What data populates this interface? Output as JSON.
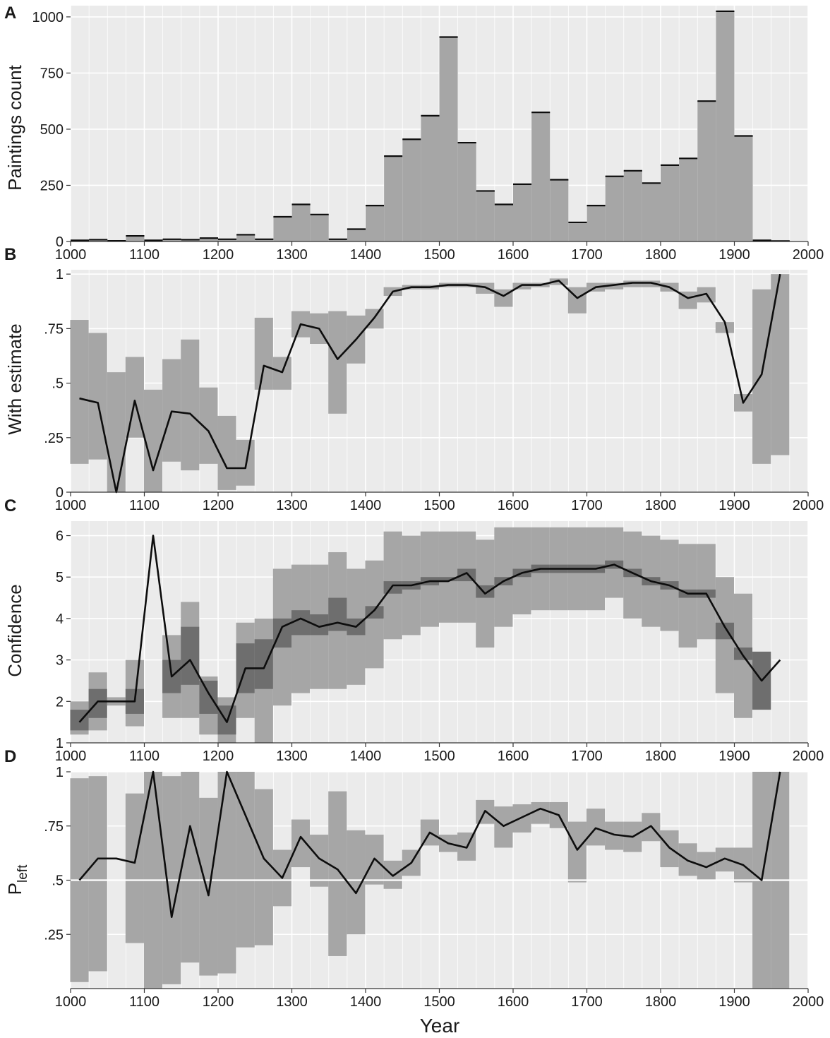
{
  "chart_data": [
    {
      "panel": "A",
      "type": "bar",
      "ylabel": "Paintings count",
      "xlim": [
        1000,
        2000
      ],
      "ylim": [
        0,
        1050
      ],
      "x_ticks": [
        "1000",
        "1100",
        "1200",
        "1300",
        "1400",
        "1500",
        "1600",
        "1700",
        "1800",
        "1900",
        "2000"
      ],
      "y_ticks": [
        {
          "value": 0,
          "label": "0"
        },
        {
          "value": 250,
          "label": "250"
        },
        {
          "value": 500,
          "label": "500"
        },
        {
          "value": 750,
          "label": "750"
        },
        {
          "value": 1000,
          "label": "1000"
        }
      ],
      "bin_width": 25,
      "bin_starts": [
        1000,
        1025,
        1050,
        1075,
        1100,
        1125,
        1150,
        1175,
        1200,
        1225,
        1250,
        1275,
        1300,
        1325,
        1350,
        1375,
        1400,
        1425,
        1450,
        1475,
        1500,
        1525,
        1550,
        1575,
        1600,
        1625,
        1650,
        1675,
        1700,
        1725,
        1750,
        1775,
        1800,
        1825,
        1850,
        1875,
        1900,
        1925,
        1950
      ],
      "values": [
        5,
        8,
        3,
        25,
        5,
        10,
        8,
        15,
        10,
        30,
        10,
        110,
        165,
        120,
        10,
        55,
        160,
        380,
        455,
        560,
        910,
        440,
        225,
        165,
        255,
        575,
        275,
        85,
        160,
        290,
        315,
        260,
        340,
        370,
        625,
        1025,
        470,
        5,
        2
      ]
    },
    {
      "panel": "B",
      "type": "line",
      "ylabel": "With estimate",
      "xlim": [
        1000,
        2000
      ],
      "ylim": [
        0,
        1.02
      ],
      "x_ticks": [
        "1000",
        "1100",
        "1200",
        "1300",
        "1400",
        "1500",
        "1600",
        "1700",
        "1800",
        "1900",
        "2000"
      ],
      "y_ticks": [
        {
          "value": 0,
          "label": "0"
        },
        {
          "value": 0.25,
          "label": ".25"
        },
        {
          "value": 0.5,
          "label": ".5"
        },
        {
          "value": 0.75,
          "label": ".75"
        },
        {
          "value": 1,
          "label": "1"
        }
      ],
      "x": [
        1012,
        1037,
        1062,
        1087,
        1112,
        1137,
        1162,
        1187,
        1212,
        1237,
        1262,
        1287,
        1312,
        1337,
        1362,
        1387,
        1412,
        1437,
        1462,
        1487,
        1512,
        1537,
        1562,
        1587,
        1612,
        1637,
        1662,
        1687,
        1712,
        1737,
        1762,
        1787,
        1812,
        1837,
        1862,
        1887,
        1912,
        1937,
        1962
      ],
      "values": [
        0.43,
        0.41,
        0.0,
        0.42,
        0.1,
        0.37,
        0.36,
        0.28,
        0.11,
        0.11,
        0.58,
        0.55,
        0.77,
        0.75,
        0.61,
        0.7,
        0.8,
        0.92,
        0.94,
        0.94,
        0.95,
        0.95,
        0.94,
        0.9,
        0.95,
        0.95,
        0.97,
        0.89,
        0.94,
        0.95,
        0.96,
        0.96,
        0.94,
        0.89,
        0.91,
        0.78,
        0.41,
        0.54,
        1.0
      ],
      "ci_lower": [
        0.13,
        0.15,
        0.0,
        0.25,
        0.0,
        0.14,
        0.1,
        0.13,
        0.01,
        0.03,
        0.47,
        0.47,
        0.71,
        0.68,
        0.36,
        0.59,
        0.75,
        0.9,
        0.93,
        0.93,
        0.94,
        0.94,
        0.91,
        0.85,
        0.93,
        0.94,
        0.95,
        0.82,
        0.92,
        0.93,
        0.94,
        0.94,
        0.92,
        0.84,
        0.87,
        0.73,
        0.37,
        0.13,
        0.17
      ],
      "ci_upper": [
        0.79,
        0.73,
        0.55,
        0.62,
        0.47,
        0.61,
        0.7,
        0.48,
        0.35,
        0.24,
        0.8,
        0.62,
        0.83,
        0.82,
        0.83,
        0.81,
        0.84,
        0.94,
        0.95,
        0.95,
        0.96,
        0.96,
        0.96,
        0.93,
        0.96,
        0.96,
        0.98,
        0.94,
        0.96,
        0.96,
        0.97,
        0.97,
        0.96,
        0.92,
        0.94,
        0.78,
        0.45,
        0.93,
        1.0
      ]
    },
    {
      "panel": "C",
      "type": "line",
      "ylabel": "Confidence",
      "xlim": [
        1000,
        2000
      ],
      "ylim": [
        1,
        6.35
      ],
      "x_ticks": [
        "1000",
        "1100",
        "1200",
        "1300",
        "1400",
        "1500",
        "1600",
        "1700",
        "1800",
        "1900",
        "2000"
      ],
      "y_ticks": [
        {
          "value": 1,
          "label": "1"
        },
        {
          "value": 2,
          "label": "2"
        },
        {
          "value": 3,
          "label": "3"
        },
        {
          "value": 4,
          "label": "4"
        },
        {
          "value": 5,
          "label": "5"
        },
        {
          "value": 6,
          "label": "6"
        }
      ],
      "x": [
        1012,
        1037,
        1062,
        1087,
        1112,
        1137,
        1162,
        1187,
        1212,
        1237,
        1262,
        1287,
        1312,
        1337,
        1362,
        1387,
        1412,
        1437,
        1462,
        1487,
        1512,
        1537,
        1562,
        1587,
        1612,
        1637,
        1662,
        1687,
        1712,
        1737,
        1762,
        1787,
        1812,
        1837,
        1862,
        1887,
        1912,
        1937,
        1962
      ],
      "values": [
        1.5,
        2.0,
        2.0,
        2.0,
        6.0,
        2.6,
        3.0,
        2.2,
        1.5,
        2.8,
        2.8,
        3.8,
        4.0,
        3.8,
        3.9,
        3.8,
        4.2,
        4.8,
        4.8,
        4.9,
        4.9,
        5.1,
        4.6,
        4.9,
        5.1,
        5.2,
        5.2,
        5.2,
        5.2,
        5.3,
        5.1,
        4.9,
        4.8,
        4.6,
        4.6,
        3.8,
        3.1,
        2.5,
        3.0
      ],
      "band_outer_lower": [
        1.2,
        1.3,
        1.9,
        1.4,
        null,
        1.6,
        1.6,
        1.2,
        1.0,
        1.6,
        1.0,
        1.9,
        2.2,
        2.3,
        2.3,
        2.4,
        2.8,
        3.5,
        3.6,
        3.8,
        3.9,
        3.9,
        3.3,
        3.8,
        4.1,
        4.2,
        4.2,
        4.2,
        4.2,
        4.5,
        4.0,
        3.8,
        3.7,
        3.3,
        3.5,
        2.2,
        1.6,
        1.8,
        null
      ],
      "band_outer_upper": [
        2.0,
        2.7,
        2.1,
        3.0,
        null,
        3.6,
        4.4,
        2.6,
        2.1,
        3.9,
        4.0,
        5.2,
        5.3,
        5.3,
        5.6,
        5.2,
        5.4,
        6.1,
        6.0,
        6.1,
        6.1,
        6.1,
        5.9,
        6.2,
        6.2,
        6.2,
        6.2,
        6.2,
        6.2,
        6.2,
        6.1,
        6.0,
        5.9,
        5.8,
        5.8,
        5.0,
        4.6,
        3.2,
        null
      ],
      "band_inner_lower": [
        1.3,
        1.6,
        2.0,
        1.7,
        null,
        2.2,
        2.4,
        1.7,
        1.2,
        2.2,
        2.3,
        3.3,
        3.6,
        3.6,
        3.7,
        3.6,
        4.0,
        4.6,
        4.7,
        4.8,
        4.9,
        4.9,
        4.5,
        4.8,
        5.0,
        5.1,
        5.1,
        5.1,
        5.1,
        5.2,
        5.0,
        4.8,
        4.7,
        4.5,
        4.5,
        3.5,
        3.0,
        1.8,
        null
      ],
      "band_inner_upper": [
        1.8,
        2.3,
        2.0,
        2.3,
        null,
        3.0,
        3.8,
        2.5,
        1.9,
        3.4,
        3.5,
        4.0,
        4.2,
        4.1,
        4.5,
        4.0,
        4.3,
        4.9,
        4.9,
        5.0,
        5.0,
        5.2,
        4.8,
        5.0,
        5.2,
        5.3,
        5.3,
        5.3,
        5.3,
        5.4,
        5.2,
        5.0,
        4.9,
        4.7,
        4.7,
        3.9,
        3.3,
        3.2,
        null
      ]
    },
    {
      "panel": "D",
      "type": "line",
      "ylabel": "P",
      "ylabel_subscript": "left",
      "xlabel": "Year",
      "xlim": [
        1000,
        2000
      ],
      "ylim": [
        0,
        1.0
      ],
      "reference_line": 0.5,
      "x_ticks": [
        "1000",
        "1100",
        "1200",
        "1300",
        "1400",
        "1500",
        "1600",
        "1700",
        "1800",
        "1900",
        "2000"
      ],
      "y_ticks": [
        {
          "value": 0.25,
          "label": ".25"
        },
        {
          "value": 0.5,
          "label": ".5"
        },
        {
          "value": 0.75,
          "label": ".75"
        },
        {
          "value": 1,
          "label": "1"
        }
      ],
      "x": [
        1012,
        1037,
        1062,
        1087,
        1112,
        1137,
        1162,
        1187,
        1212,
        1237,
        1262,
        1287,
        1312,
        1337,
        1362,
        1387,
        1412,
        1437,
        1462,
        1487,
        1512,
        1537,
        1562,
        1587,
        1612,
        1637,
        1662,
        1687,
        1712,
        1737,
        1762,
        1787,
        1812,
        1837,
        1862,
        1887,
        1912,
        1937,
        1962
      ],
      "values": [
        0.5,
        0.6,
        0.6,
        0.58,
        1.0,
        0.33,
        0.75,
        0.43,
        1.0,
        0.8,
        0.6,
        0.51,
        0.7,
        0.6,
        0.55,
        0.44,
        0.6,
        0.52,
        0.58,
        0.72,
        0.67,
        0.65,
        0.82,
        0.75,
        0.79,
        0.83,
        0.8,
        0.64,
        0.74,
        0.71,
        0.7,
        0.75,
        0.65,
        0.59,
        0.56,
        0.6,
        0.57,
        0.5,
        1.0
      ],
      "ci_lower": [
        0.03,
        0.08,
        null,
        0.21,
        0.0,
        0.02,
        0.12,
        0.06,
        0.07,
        0.19,
        0.2,
        0.38,
        0.56,
        0.47,
        0.15,
        0.25,
        0.48,
        0.46,
        0.52,
        0.66,
        0.63,
        0.59,
        0.76,
        0.65,
        0.72,
        0.76,
        0.74,
        0.49,
        0.66,
        0.64,
        0.63,
        0.68,
        0.56,
        0.52,
        0.5,
        0.54,
        0.49,
        0.0,
        0.0
      ],
      "ci_upper": [
        0.97,
        0.98,
        null,
        0.9,
        1.0,
        0.98,
        1.0,
        0.88,
        1.0,
        1.0,
        0.92,
        0.64,
        0.78,
        0.71,
        0.91,
        0.73,
        0.71,
        0.59,
        0.64,
        0.78,
        0.71,
        0.72,
        0.87,
        0.84,
        0.85,
        0.86,
        0.86,
        0.77,
        0.83,
        0.77,
        0.77,
        0.81,
        0.73,
        0.67,
        0.63,
        0.65,
        0.65,
        1.0,
        1.0
      ]
    }
  ]
}
